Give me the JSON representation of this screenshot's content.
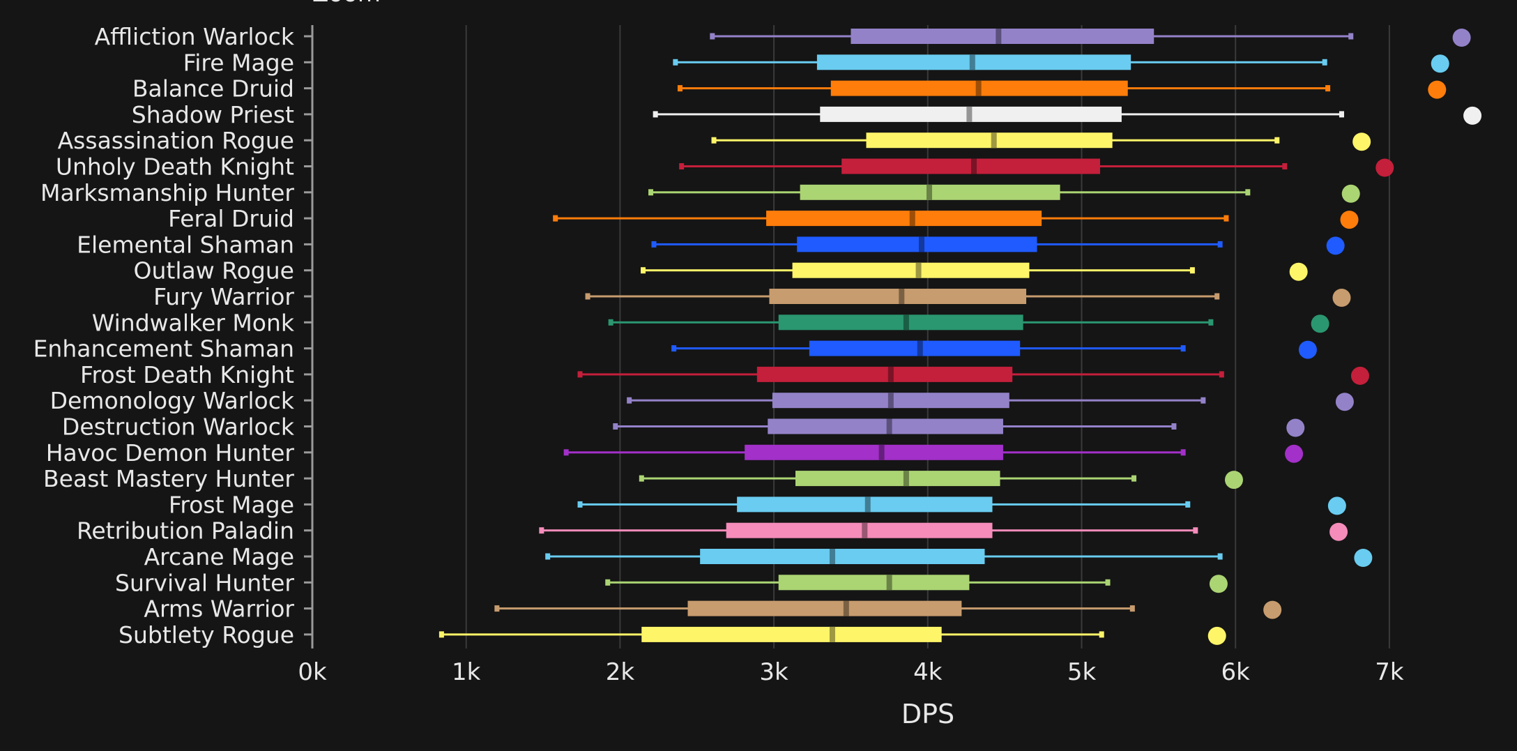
{
  "chart_data": {
    "type": "boxplot",
    "orientation": "horizontal",
    "xlabel": "DPS",
    "xlim": [
      0,
      7500
    ],
    "x_ticks": [
      0,
      1000,
      2000,
      3000,
      4000,
      5000,
      6000,
      7000
    ],
    "x_tick_labels": [
      "0k",
      "1k",
      "2k",
      "3k",
      "4k",
      "5k",
      "6k",
      "7k"
    ],
    "grid": "vertical",
    "legend": "none",
    "top_label_partial": "Zoom",
    "series": [
      {
        "name": "Affliction Warlock",
        "color": "#9482c9",
        "min": 2600,
        "q1": 3500,
        "median": 4460,
        "q3": 5470,
        "max": 6750,
        "outlier": 7470
      },
      {
        "name": "Fire Mage",
        "color": "#69ccf0",
        "min": 2360,
        "q1": 3280,
        "median": 4290,
        "q3": 5320,
        "max": 6580,
        "outlier": 7330
      },
      {
        "name": "Balance Druid",
        "color": "#ff7d0a",
        "min": 2390,
        "q1": 3370,
        "median": 4330,
        "q3": 5300,
        "max": 6600,
        "outlier": 7310
      },
      {
        "name": "Shadow Priest",
        "color": "#f0f0f0",
        "min": 2230,
        "q1": 3300,
        "median": 4270,
        "q3": 5260,
        "max": 6690,
        "outlier": 7540
      },
      {
        "name": "Assassination Rogue",
        "color": "#fff569",
        "min": 2610,
        "q1": 3600,
        "median": 4430,
        "q3": 5200,
        "max": 6270,
        "outlier": 6820
      },
      {
        "name": "Unholy Death Knight",
        "color": "#c41f3b",
        "min": 2400,
        "q1": 3440,
        "median": 4300,
        "q3": 5120,
        "max": 6320,
        "outlier": 6970
      },
      {
        "name": "Marksmanship Hunter",
        "color": "#abd473",
        "min": 2200,
        "q1": 3170,
        "median": 4010,
        "q3": 4860,
        "max": 6080,
        "outlier": 6750
      },
      {
        "name": "Feral Druid",
        "color": "#ff7d0a",
        "min": 1580,
        "q1": 2950,
        "median": 3900,
        "q3": 4740,
        "max": 5940,
        "outlier": 6740
      },
      {
        "name": "Elemental Shaman",
        "color": "#1f5bff",
        "min": 2220,
        "q1": 3150,
        "median": 3960,
        "q3": 4710,
        "max": 5900,
        "outlier": 6650
      },
      {
        "name": "Outlaw Rogue",
        "color": "#fff569",
        "min": 2150,
        "q1": 3120,
        "median": 3940,
        "q3": 4660,
        "max": 5720,
        "outlier": 6410
      },
      {
        "name": "Fury Warrior",
        "color": "#c79c6e",
        "min": 1790,
        "q1": 2970,
        "median": 3830,
        "q3": 4640,
        "max": 5880,
        "outlier": 6690
      },
      {
        "name": "Windwalker Monk",
        "color": "#2a9770",
        "min": 1940,
        "q1": 3030,
        "median": 3860,
        "q3": 4620,
        "max": 5840,
        "outlier": 6550
      },
      {
        "name": "Enhancement Shaman",
        "color": "#1f5bff",
        "min": 2350,
        "q1": 3230,
        "median": 3950,
        "q3": 4600,
        "max": 5660,
        "outlier": 6470
      },
      {
        "name": "Frost Death Knight",
        "color": "#c41f3b",
        "min": 1740,
        "q1": 2890,
        "median": 3760,
        "q3": 4550,
        "max": 5910,
        "outlier": 6810
      },
      {
        "name": "Demonology Warlock",
        "color": "#9482c9",
        "min": 2060,
        "q1": 2990,
        "median": 3760,
        "q3": 4530,
        "max": 5790,
        "outlier": 6710
      },
      {
        "name": "Destruction Warlock",
        "color": "#9482c9",
        "min": 1970,
        "q1": 2960,
        "median": 3750,
        "q3": 4490,
        "max": 5600,
        "outlier": 6390
      },
      {
        "name": "Havoc Demon Hunter",
        "color": "#a330c9",
        "min": 1650,
        "q1": 2810,
        "median": 3700,
        "q3": 4490,
        "max": 5660,
        "outlier": 6380
      },
      {
        "name": "Beast Mastery Hunter",
        "color": "#abd473",
        "min": 2140,
        "q1": 3140,
        "median": 3860,
        "q3": 4470,
        "max": 5340,
        "outlier": 5990
      },
      {
        "name": "Frost Mage",
        "color": "#69ccf0",
        "min": 1740,
        "q1": 2760,
        "median": 3610,
        "q3": 4420,
        "max": 5690,
        "outlier": 6660
      },
      {
        "name": "Retribution Paladin",
        "color": "#f58cba",
        "min": 1490,
        "q1": 2690,
        "median": 3590,
        "q3": 4420,
        "max": 5740,
        "outlier": 6670
      },
      {
        "name": "Arcane Mage",
        "color": "#69ccf0",
        "min": 1530,
        "q1": 2520,
        "median": 3380,
        "q3": 4370,
        "max": 5900,
        "outlier": 6830
      },
      {
        "name": "Survival Hunter",
        "color": "#abd473",
        "min": 1920,
        "q1": 3030,
        "median": 3750,
        "q3": 4270,
        "max": 5170,
        "outlier": 5890
      },
      {
        "name": "Arms Warrior",
        "color": "#c79c6e",
        "min": 1200,
        "q1": 2440,
        "median": 3470,
        "q3": 4220,
        "max": 5330,
        "outlier": 6240
      },
      {
        "name": "Subtlety Rogue",
        "color": "#fff569",
        "min": 840,
        "q1": 2140,
        "median": 3380,
        "q3": 4090,
        "max": 5130,
        "outlier": 5880
      }
    ]
  }
}
